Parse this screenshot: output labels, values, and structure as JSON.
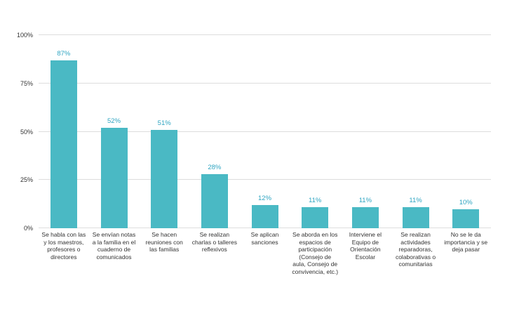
{
  "chart_data": {
    "type": "bar",
    "title": "",
    "xlabel": "",
    "ylabel": "",
    "categories": [
      "Se habla con las y los maestros, profesores o directores",
      "Se envían notas a la familia en el cuaderno de comunicados",
      "Se hacen reuniones con las familias",
      "Se realizan charlas o talleres reflexivos",
      "Se aplican sanciones",
      "Se aborda en los espacios de participación (Consejo de aula, Consejo de convivencia, etc.)",
      "Interviene el Equipo de Orientación Escolar",
      "Se realizan actividades reparadoras, colaborativas o comunitarias",
      "No se le da importancia y se deja pasar"
    ],
    "values": [
      87,
      52,
      51,
      28,
      12,
      11,
      11,
      11,
      10
    ],
    "value_labels": [
      "87%",
      "52%",
      "51%",
      "28%",
      "12%",
      "11%",
      "11%",
      "11%",
      "10%"
    ],
    "y_ticks": [
      {
        "label": "0%",
        "value": 0
      },
      {
        "label": "25%",
        "value": 25
      },
      {
        "label": "50%",
        "value": 50
      },
      {
        "label": "75%",
        "value": 75
      },
      {
        "label": "100%",
        "value": 100
      }
    ],
    "ylim": [
      0,
      100
    ],
    "grid": true,
    "legend": "none",
    "bar_color": "#4ab9c4",
    "value_label_color": "#2fa5c2",
    "axis_text_color": "#333333",
    "gridline_color": "#dddddd"
  }
}
